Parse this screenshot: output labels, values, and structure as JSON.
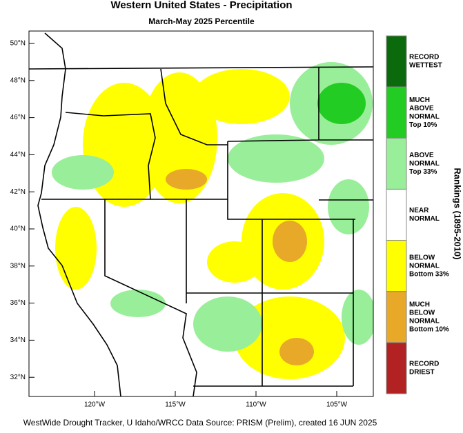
{
  "header": {
    "title": "Western United States - Precipitation",
    "subtitle": "March-May 2025 Percentile"
  },
  "map": {
    "lat_labels": [
      "50°N",
      "48°N",
      "46°N",
      "44°N",
      "42°N",
      "40°N",
      "38°N",
      "36°N",
      "34°N",
      "32°N"
    ],
    "lon_labels": [
      "120°W",
      "115°W",
      "110°W",
      "105°W"
    ]
  },
  "legend": {
    "title": "Rankings (1895-2010)",
    "items": [
      {
        "lines": [
          "RECORD",
          "WETTEST"
        ],
        "color": "#0b6a0b"
      },
      {
        "lines": [
          "MUCH",
          "ABOVE",
          "NORMAL",
          "Top 10%"
        ],
        "color": "#22cc22"
      },
      {
        "lines": [
          "ABOVE",
          "NORMAL",
          "Top 33%"
        ],
        "color": "#99ee99"
      },
      {
        "lines": [
          "NEAR",
          "NORMAL"
        ],
        "color": "#ffffff"
      },
      {
        "lines": [
          "BELOW",
          "NORMAL",
          "Bottom 33%"
        ],
        "color": "#ffff00"
      },
      {
        "lines": [
          "MUCH",
          "BELOW",
          "NORMAL",
          "Bottom 10%"
        ],
        "color": "#e8a828"
      },
      {
        "lines": [
          "RECORD",
          "DRIEST"
        ],
        "color": "#b22222"
      }
    ]
  },
  "footer": {
    "text": "WestWide Drought Tracker, U Idaho/WRCC Data Source: PRISM (Prelim), created 16 JUN 2025"
  }
}
